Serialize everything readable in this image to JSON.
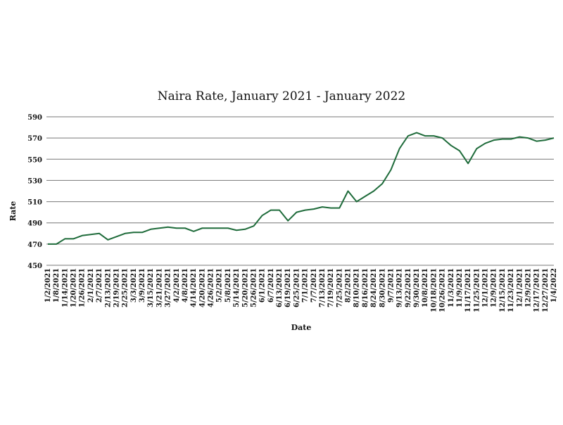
{
  "chart_data": {
    "type": "line",
    "title": "Naira Rate, January 2021 - January 2022",
    "x_label": "Date",
    "y_label": "Rate",
    "categories": [
      "1/2/2021",
      "1/8/2021",
      "1/14/2021",
      "1/20/2021",
      "1/26/2021",
      "2/1/2021",
      "2/7/2021",
      "2/13/2021",
      "2/19/2021",
      "2/25/2021",
      "3/3/2021",
      "3/9/2021",
      "3/15/2021",
      "3/21/2021",
      "3/27/2021",
      "4/2/2021",
      "4/8/2021",
      "4/14/2021",
      "4/20/2021",
      "4/26/2021",
      "5/2/2021",
      "5/8/2021",
      "5/14/2021",
      "5/20/2021",
      "5/26/2021",
      "6/1/2021",
      "6/7/2021",
      "6/13/2021",
      "6/19/2021",
      "6/25/2021",
      "7/1/2021",
      "7/7/2021",
      "7/13/2021",
      "7/19/2021",
      "7/25/2021",
      "8/2/2021",
      "8/10/2021",
      "8/16/2021",
      "8/24/2021",
      "8/30/2021",
      "9/7/2021",
      "9/13/2021",
      "9/22/2021",
      "9/30/2021",
      "10/8/2021",
      "10/18/2021",
      "10/26/2021",
      "11/3/2021",
      "11/9/2021",
      "11/17/2021",
      "11/25/2021",
      "12/1/2021",
      "12/9/2021",
      "12/15/2021",
      "11/23/2021",
      "12/1/2021",
      "12/9/2021",
      "12/17/2021",
      "12/27/2021",
      "1/4/2022"
    ],
    "series": [
      {
        "name": "Rate",
        "color": "#1e6b3a",
        "values": [
          470,
          470,
          475,
          475,
          478,
          479,
          480,
          474,
          477,
          480,
          481,
          481,
          484,
          485,
          486,
          485,
          485,
          482,
          485,
          485,
          485,
          485,
          483,
          484,
          487,
          497,
          502,
          502,
          492,
          500,
          502,
          503,
          505,
          504,
          504,
          520,
          510,
          515,
          520,
          527,
          540,
          560,
          572,
          575,
          572,
          572,
          570,
          563,
          558,
          546,
          560,
          565,
          568,
          569,
          569,
          571,
          570,
          567,
          568,
          570
        ]
      }
    ],
    "ylim": [
      450,
      590
    ],
    "yticks": [
      450,
      470,
      490,
      510,
      530,
      550,
      570,
      590
    ],
    "grid": true
  }
}
